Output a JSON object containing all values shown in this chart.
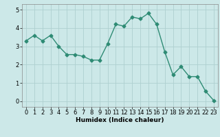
{
  "x": [
    0,
    1,
    2,
    3,
    4,
    5,
    6,
    7,
    8,
    9,
    10,
    11,
    12,
    13,
    14,
    15,
    16,
    17,
    18,
    19,
    20,
    21,
    22,
    23
  ],
  "y": [
    3.3,
    3.6,
    3.3,
    3.6,
    3.0,
    2.55,
    2.55,
    2.45,
    2.25,
    2.25,
    3.15,
    4.2,
    4.1,
    4.6,
    4.5,
    4.8,
    4.2,
    2.7,
    1.45,
    1.9,
    1.35,
    1.35,
    0.55,
    0.05
  ],
  "line_color": "#2e8b74",
  "marker": "D",
  "marker_size": 2.5,
  "linewidth": 1.0,
  "bg_color": "#cce8e8",
  "grid_color": "#aed0d0",
  "xlabel": "Humidex (Indice chaleur)",
  "xlim": [
    -0.5,
    23.5
  ],
  "ylim": [
    -0.3,
    5.3
  ],
  "yticks": [
    0,
    1,
    2,
    3,
    4,
    5
  ],
  "xticks": [
    0,
    1,
    2,
    3,
    4,
    5,
    6,
    7,
    8,
    9,
    10,
    11,
    12,
    13,
    14,
    15,
    16,
    17,
    18,
    19,
    20,
    21,
    22,
    23
  ],
  "xlabel_fontsize": 6.5,
  "tick_fontsize": 6.0
}
